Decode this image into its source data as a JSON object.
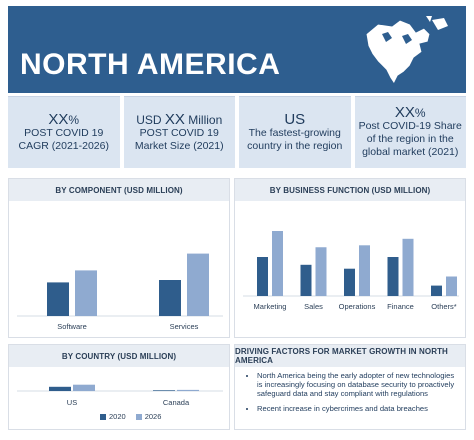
{
  "header": {
    "title": "NORTH AMERICA",
    "map_icon": "north-america-map-icon"
  },
  "stats": [
    {
      "value_prefix": "",
      "value_main": "XX",
      "value_suffix": "%",
      "label": "POST COVID 19 CAGR (2021-2026)"
    },
    {
      "value_prefix": "USD ",
      "value_main": "XX",
      "value_suffix": " Million",
      "label": "POST COVID 19 Market Size (2021)"
    },
    {
      "value_prefix": "",
      "value_main": "US",
      "value_suffix": "",
      "label": "The fastest-growing country in the region"
    },
    {
      "value_prefix": "",
      "value_main": "XX",
      "value_suffix": "%",
      "label": "Post COVID-19 Share of the region in the global market (2021)"
    }
  ],
  "colors": {
    "primary": "#2e5e8f",
    "series_2020": "#2f5d8c",
    "series_2026": "#8faad0",
    "tile_bg": "#dbe5f1"
  },
  "chart_data": [
    {
      "type": "bar",
      "title": "BY COMPONENT (USD MILLION)",
      "categories": [
        "Software",
        "Services"
      ],
      "series": [
        {
          "name": "2020",
          "values": [
            42,
            45
          ]
        },
        {
          "name": "2026",
          "values": [
            57,
            78
          ]
        }
      ],
      "ylim": [
        0,
        100
      ]
    },
    {
      "type": "bar",
      "title": "BY BUSINESS FUNCTION (USD MILLION)",
      "categories": [
        "Marketing",
        "Sales",
        "Operations",
        "Finance",
        "Others*"
      ],
      "series": [
        {
          "name": "2020",
          "values": [
            60,
            48,
            42,
            60,
            16
          ]
        },
        {
          "name": "2026",
          "values": [
            100,
            75,
            78,
            88,
            30
          ]
        }
      ],
      "ylim": [
        0,
        100
      ]
    },
    {
      "type": "bar",
      "title": "BY COUNTRY (USD MILLION)",
      "categories": [
        "US",
        "Canada"
      ],
      "series": [
        {
          "name": "2020",
          "values": [
            60,
            10
          ]
        },
        {
          "name": "2026",
          "values": [
            90,
            16
          ]
        }
      ],
      "ylim": [
        0,
        100
      ],
      "legend": "bottom"
    }
  ],
  "drivers": {
    "title": "DRIVING FACTORS FOR MARKET GROWTH IN NORTH AMERICA",
    "items": [
      "North America being the early adopter of new technologies is increasingly focusing on database security to proactively safeguard data and stay compliant with regulations",
      "Recent increase in cybercrimes and data breaches"
    ]
  },
  "legend": {
    "items": [
      "2020",
      "2026"
    ]
  }
}
